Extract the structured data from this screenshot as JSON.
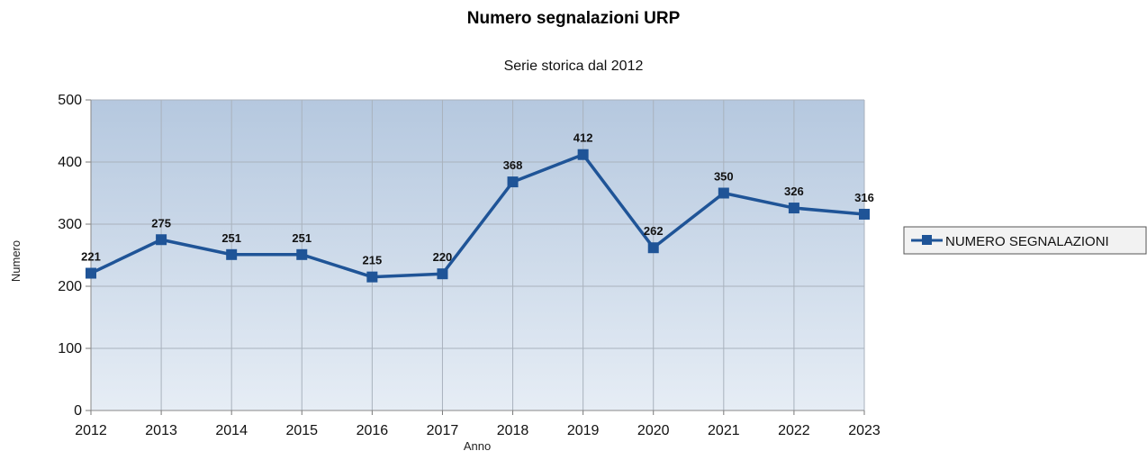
{
  "chart_data": {
    "type": "line",
    "title": "Numero segnalazioni URP",
    "subtitle": "Serie storica dal 2012",
    "xlabel": "Anno",
    "ylabel": "Numero",
    "categories": [
      "2012",
      "2013",
      "2014",
      "2015",
      "2016",
      "2017",
      "2018",
      "2019",
      "2020",
      "2021",
      "2022",
      "2023"
    ],
    "series": [
      {
        "name": "NUMERO SEGNALAZIONI",
        "values": [
          221,
          275,
          251,
          251,
          215,
          220,
          368,
          412,
          262,
          350,
          326,
          316
        ],
        "color": "#1f5497"
      }
    ],
    "ylim": [
      0,
      500
    ],
    "yticks": [
      0,
      100,
      200,
      300,
      400,
      500
    ],
    "grid": true,
    "legend_position": "right",
    "plot_background_top": "#b5c8df",
    "plot_background_bottom": "#e6edf5",
    "grid_color": "#a9b2bd"
  }
}
